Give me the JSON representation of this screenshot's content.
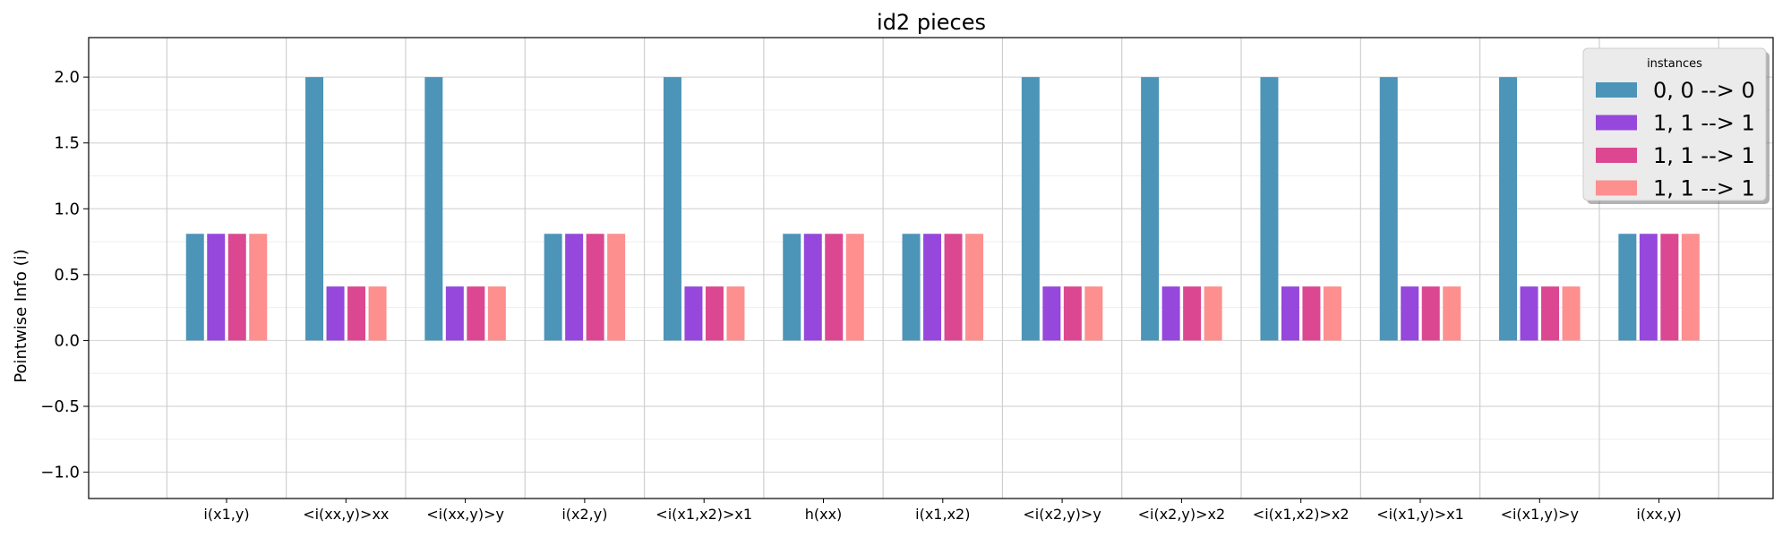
{
  "chart_data": {
    "type": "bar",
    "title": "id2 pieces",
    "xlabel": "",
    "ylabel": "Pointwise Info (i)",
    "ylim": [
      -1.2,
      2.3
    ],
    "yticks": [
      -1.0,
      -0.5,
      0.0,
      0.5,
      1.0,
      1.5,
      2.0
    ],
    "ytick_labels": [
      "−1.0",
      "−0.5",
      "0.0",
      "0.5",
      "1.0",
      "1.5",
      "2.0"
    ],
    "grid": true,
    "legend": {
      "title": "instances",
      "placement": "top-right"
    },
    "categories": [
      "i(x1,y)",
      "<i(xx,y)>xx",
      "<i(xx,y)>y",
      "i(x2,y)",
      "<i(x1,x2)>x1",
      "h(xx)",
      "i(x1,x2)",
      "<i(x2,y)>y",
      "<i(x2,y)>x2",
      "<i(x1,x2)>x2",
      "<i(x1,y)>x1",
      "<i(x1,y)>y",
      "i(xx,y)"
    ],
    "series": [
      {
        "name": "0, 0 --> 0",
        "color": "#4c94b8",
        "values": [
          0.81,
          2.0,
          2.0,
          0.81,
          2.0,
          0.81,
          0.81,
          2.0,
          2.0,
          2.0,
          2.0,
          2.0,
          0.81
        ]
      },
      {
        "name": "1, 1 --> 1",
        "color": "#9548db",
        "values": [
          0.81,
          0.41,
          0.41,
          0.81,
          0.41,
          0.81,
          0.81,
          0.41,
          0.41,
          0.41,
          0.41,
          0.41,
          0.81
        ]
      },
      {
        "name": "1, 1 --> 1",
        "color": "#db4891",
        "values": [
          0.81,
          0.41,
          0.41,
          0.81,
          0.41,
          0.81,
          0.81,
          0.41,
          0.41,
          0.41,
          0.41,
          0.41,
          0.81
        ]
      },
      {
        "name": "1, 1 --> 1",
        "color": "#fd8f8f",
        "values": [
          0.81,
          0.41,
          0.41,
          0.81,
          0.41,
          0.81,
          0.81,
          0.41,
          0.41,
          0.41,
          0.41,
          0.41,
          0.81
        ]
      }
    ]
  }
}
